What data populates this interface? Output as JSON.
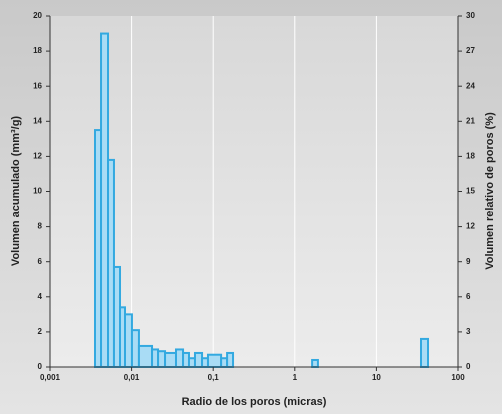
{
  "chart_data": {
    "type": "histogram",
    "x_label": "Radio de los poros (micras)",
    "y_label": "Volumen acumulado (mm³/g)",
    "y2_label": "Volumen relativo de poros (%)",
    "bins": [
      0.00356,
      0.00422,
      0.00514,
      0.00608,
      0.00721,
      0.0083,
      0.0101,
      0.0123,
      0.0178,
      0.0211,
      0.0257,
      0.035,
      0.0427,
      0.0505,
      0.0598,
      0.073,
      0.0863,
      0.125,
      0.148,
      0.175,
      1.63,
      1.92,
      35.2,
      42.9
    ],
    "counts": [
      13.5,
      19,
      11.8,
      5.7,
      3.4,
      3.0,
      2.1,
      1.2,
      1.0,
      0.9,
      0.8,
      1.0,
      0.8,
      0.5,
      0.8,
      0.5,
      0.7,
      0.5,
      0.8,
      0,
      0.4,
      0,
      1.6
    ],
    "color": "#33a9e0",
    "fill": "#a9dcf5",
    "xscale": "log",
    "xlim": [
      0.001,
      100
    ],
    "xticks": [
      {
        "value": 0.001,
        "label": "0,001"
      },
      {
        "value": 0.01,
        "label": "0,01"
      },
      {
        "value": 0.1,
        "label": "0,1"
      },
      1,
      10,
      100
    ],
    "ylim": [
      0,
      20
    ],
    "yticks": [
      0,
      2,
      4,
      6,
      8,
      10,
      12,
      14,
      16,
      18,
      20
    ],
    "y2lim": [
      0,
      30
    ],
    "y2ticks": [
      0,
      3,
      6,
      9,
      12,
      15,
      18,
      21,
      24,
      27,
      30
    ],
    "grid": "x"
  }
}
